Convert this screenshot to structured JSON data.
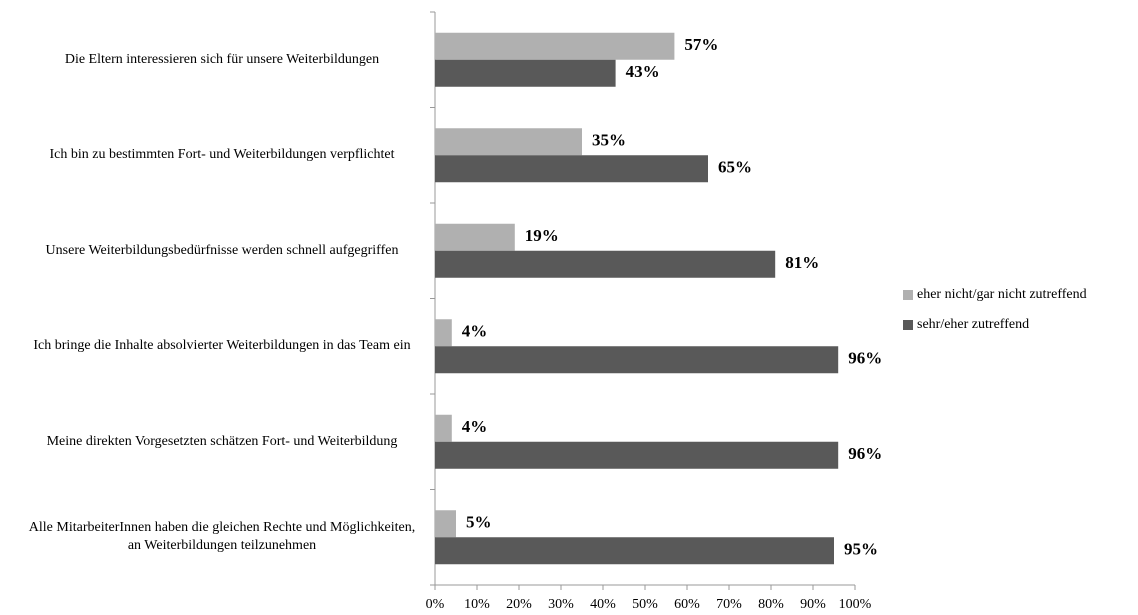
{
  "chart_data": {
    "type": "hbar",
    "categories": [
      "Die Eltern interessieren sich für unsere Weiterbildungen",
      "Ich bin zu bestimmten Fort- und Weiterbildungen verpflichtet",
      "Unsere Weiterbildungsbedürfnisse werden schnell aufgegriffen",
      "Ich bringe die Inhalte absolvierter Weiterbildungen in das Team ein",
      "Meine direkten Vorgesetzten schätzen Fort- und Weiterbildung",
      "Alle MitarbeiterInnen haben die gleichen Rechte und Möglichkeiten, an Weiterbildungen teilzunehmen"
    ],
    "series": [
      {
        "name": "eher nicht/gar nicht zutreffend",
        "color": "#b0b0b0",
        "values": [
          57,
          35,
          19,
          4,
          4,
          5
        ],
        "value_labels": [
          "57%",
          "35%",
          "19%",
          "4%",
          "4%",
          "5%"
        ]
      },
      {
        "name": "sehr/eher zutreffend",
        "color": "#595959",
        "values": [
          43,
          65,
          81,
          96,
          96,
          95
        ],
        "value_labels": [
          "43%",
          "65%",
          "81%",
          "96%",
          "96%",
          "95%"
        ]
      }
    ],
    "xlim": [
      0,
      100
    ],
    "xticks": [
      {
        "value": 0,
        "label": "0%"
      },
      {
        "value": 10,
        "label": "10%"
      },
      {
        "value": 20,
        "label": "20%"
      },
      {
        "value": 30,
        "label": "30%"
      },
      {
        "value": 40,
        "label": "40%"
      },
      {
        "value": 50,
        "label": "50%"
      },
      {
        "value": 60,
        "label": "60%"
      },
      {
        "value": 70,
        "label": "70%"
      },
      {
        "value": 80,
        "label": "80%"
      },
      {
        "value": 90,
        "label": "90%"
      },
      {
        "value": 100,
        "label": "100%"
      }
    ],
    "legend": "right",
    "grid": false
  }
}
